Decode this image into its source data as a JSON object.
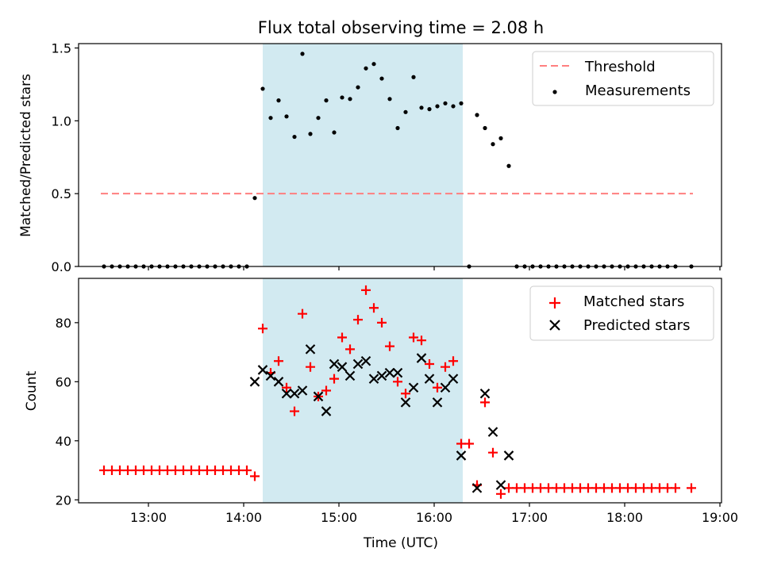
{
  "title": "Flux total observing time = 2.08 h",
  "colors": {
    "threshold": "#ff7f7f",
    "measure": "#000000",
    "matched": "#ff0000",
    "predicted": "#000000",
    "span": "#add8e6"
  },
  "time_ticks": [
    "13:00",
    "14:00",
    "15:00",
    "16:00",
    "17:00",
    "18:00",
    "19:00"
  ],
  "chart_data": [
    {
      "type": "scatter",
      "title": "Flux total observing time = 2.08 h",
      "xlabel": "",
      "ylabel": "Matched/Predicted stars",
      "xlim": [
        "12:16",
        "19:01"
      ],
      "ylim": [
        0,
        1.53
      ],
      "yticks": [
        "0.0",
        "0.5",
        "1.0",
        "1.5"
      ],
      "ytick_values": [
        0,
        0.5,
        1.0,
        1.5
      ],
      "highlight_span": [
        "14:12",
        "16:18"
      ],
      "legend": "top-right",
      "threshold": {
        "name": "Threshold",
        "value": 0.5,
        "x_range": [
          "12:30",
          "18:43"
        ]
      },
      "series": [
        {
          "name": "Measurements",
          "x": [
            "12:32",
            "12:37",
            "12:42",
            "12:47",
            "12:52",
            "12:57",
            "13:02",
            "13:07",
            "13:12",
            "13:17",
            "13:22",
            "13:27",
            "13:32",
            "13:37",
            "13:42",
            "13:47",
            "13:52",
            "13:57",
            "14:02",
            "14:07",
            "14:12",
            "14:17",
            "14:22",
            "14:27",
            "14:32",
            "14:37",
            "14:42",
            "14:47",
            "14:52",
            "14:57",
            "15:02",
            "15:07",
            "15:12",
            "15:17",
            "15:22",
            "15:27",
            "15:32",
            "15:37",
            "15:42",
            "15:47",
            "15:52",
            "15:57",
            "16:02",
            "16:07",
            "16:12",
            "16:17",
            "16:22",
            "16:27",
            "16:32",
            "16:37",
            "16:42",
            "16:47",
            "16:52",
            "16:57",
            "17:02",
            "17:07",
            "17:12",
            "17:17",
            "17:22",
            "17:27",
            "17:32",
            "17:37",
            "17:42",
            "17:47",
            "17:52",
            "17:57",
            "18:02",
            "18:07",
            "18:12",
            "18:17",
            "18:22",
            "18:27",
            "18:32",
            "18:42"
          ],
          "y": [
            0,
            0,
            0,
            0,
            0,
            0,
            0,
            0,
            0,
            0,
            0,
            0,
            0,
            0,
            0,
            0,
            0,
            0,
            0,
            0.47,
            1.22,
            1.02,
            1.14,
            1.03,
            0.89,
            1.46,
            0.91,
            1.02,
            1.14,
            0.92,
            1.16,
            1.15,
            1.23,
            1.36,
            1.39,
            1.29,
            1.15,
            0.95,
            1.06,
            1.3,
            1.09,
            1.08,
            1.1,
            1.12,
            1.1,
            1.12,
            0,
            1.04,
            0.95,
            0.84,
            0.88,
            0.69,
            0,
            0,
            0,
            0,
            0,
            0,
            0,
            0,
            0,
            0,
            0,
            0,
            0,
            0,
            0,
            0,
            0,
            0,
            0,
            0,
            0,
            0
          ]
        }
      ]
    },
    {
      "type": "scatter",
      "xlabel": "Time (UTC)",
      "ylabel": "Count",
      "xlim": [
        "12:16",
        "19:01"
      ],
      "ylim": [
        19,
        95
      ],
      "yticks": [
        "20",
        "40",
        "60",
        "80"
      ],
      "ytick_values": [
        20,
        40,
        60,
        80
      ],
      "highlight_span": [
        "14:12",
        "16:18"
      ],
      "legend": "top-right",
      "series": [
        {
          "name": "Matched stars",
          "marker": "+",
          "x": [
            "12:32",
            "12:37",
            "12:42",
            "12:47",
            "12:52",
            "12:57",
            "13:02",
            "13:07",
            "13:12",
            "13:17",
            "13:22",
            "13:27",
            "13:32",
            "13:37",
            "13:42",
            "13:47",
            "13:52",
            "13:57",
            "14:02",
            "14:07",
            "14:12",
            "14:17",
            "14:22",
            "14:27",
            "14:32",
            "14:37",
            "14:42",
            "14:47",
            "14:52",
            "14:57",
            "15:02",
            "15:07",
            "15:12",
            "15:17",
            "15:22",
            "15:27",
            "15:32",
            "15:37",
            "15:42",
            "15:47",
            "15:52",
            "15:57",
            "16:02",
            "16:07",
            "16:12",
            "16:17",
            "16:22",
            "16:27",
            "16:32",
            "16:37",
            "16:42",
            "16:47",
            "16:52",
            "16:57",
            "17:02",
            "17:07",
            "17:12",
            "17:17",
            "17:22",
            "17:27",
            "17:32",
            "17:37",
            "17:42",
            "17:47",
            "17:52",
            "17:57",
            "18:02",
            "18:07",
            "18:12",
            "18:17",
            "18:22",
            "18:27",
            "18:32",
            "18:42"
          ],
          "y": [
            30,
            30,
            30,
            30,
            30,
            30,
            30,
            30,
            30,
            30,
            30,
            30,
            30,
            30,
            30,
            30,
            30,
            30,
            30,
            28,
            78,
            63,
            67,
            58,
            50,
            83,
            65,
            55,
            57,
            61,
            75,
            71,
            81,
            91,
            85,
            80,
            72,
            60,
            56,
            75,
            74,
            66,
            58,
            65,
            67,
            39,
            39,
            25,
            53,
            36,
            22,
            24,
            24,
            24,
            24,
            24,
            24,
            24,
            24,
            24,
            24,
            24,
            24,
            24,
            24,
            24,
            24,
            24,
            24,
            24,
            24,
            24,
            24,
            24
          ]
        },
        {
          "name": "Predicted stars",
          "marker": "x",
          "x": [
            "14:07",
            "14:12",
            "14:17",
            "14:22",
            "14:27",
            "14:32",
            "14:37",
            "14:42",
            "14:47",
            "14:52",
            "14:57",
            "15:02",
            "15:07",
            "15:12",
            "15:17",
            "15:22",
            "15:27",
            "15:32",
            "15:37",
            "15:42",
            "15:47",
            "15:52",
            "15:57",
            "16:02",
            "16:07",
            "16:12",
            "16:17",
            "16:27",
            "16:32",
            "16:37",
            "16:42",
            "16:47"
          ],
          "y": [
            60,
            64,
            62,
            60,
            56,
            56,
            57,
            71,
            55,
            50,
            66,
            65,
            62,
            66,
            67,
            61,
            62,
            63,
            63,
            53,
            58,
            68,
            61,
            53,
            58,
            61,
            35,
            24,
            56,
            43,
            25,
            35
          ]
        }
      ]
    }
  ]
}
